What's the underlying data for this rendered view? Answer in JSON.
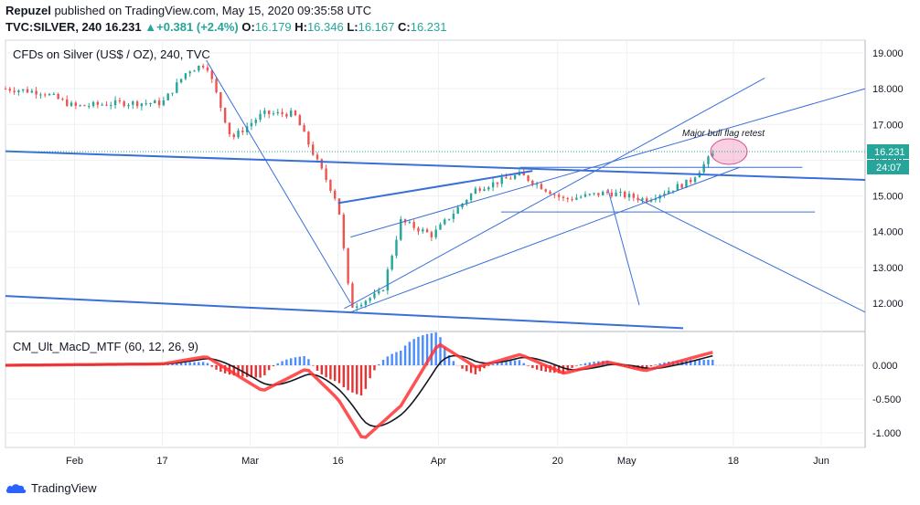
{
  "header": {
    "publisher": "Repuzel",
    "published_text": " published on TradingView.com, May 15, 2020 09:35:58 UTC",
    "symbol": "TVC:SILVER, 240",
    "last": "16.231",
    "change": "+0.381 (+2.4%)",
    "o_label": "O:",
    "o": "16.179",
    "h_label": "H:",
    "h": "16.346",
    "l_label": "L:",
    "l": "16.167",
    "c_label": "C:",
    "c": "16.231"
  },
  "price_pane": {
    "title": "CFDs on Silver (US$ / OZ), 240, TVC",
    "annotation": "Major bull flag retest",
    "price_badge": "16.231",
    "time_badge": "24:07",
    "y_ticks": [
      "19.000",
      "18.000",
      "17.000",
      "16.000",
      "15.000",
      "14.000",
      "13.000",
      "12.000"
    ]
  },
  "indicator_pane": {
    "title": "CM_Ult_MacD_MTF (60, 12, 26, 9)",
    "y_ticks": [
      "0.000",
      "-0.500",
      "-1.000"
    ]
  },
  "x_axis": {
    "ticks": [
      "Feb",
      "17",
      "Mar",
      "16",
      "Apr",
      "20",
      "May",
      "18",
      "Jun"
    ]
  },
  "footer": {
    "brand": "TradingView"
  },
  "colors": {
    "up": "#26a69a",
    "down": "#ef5350",
    "trendline": "#3a6fd8",
    "macd_green": "#66ff33",
    "macd_red": "#ff3333",
    "hist_red": "#e00000",
    "hist_blue": "#1e6fff"
  },
  "chart_data": {
    "type": "candlestick",
    "y_range": [
      11.5,
      19.2
    ],
    "price_path_points": [
      [
        "2020-01-23",
        18.0
      ],
      [
        "2020-01-29",
        17.9
      ],
      [
        "2020-02-03",
        17.5
      ],
      [
        "2020-02-10",
        17.6
      ],
      [
        "2020-02-17",
        17.6
      ],
      [
        "2020-02-21",
        18.5
      ],
      [
        "2020-02-24",
        18.7
      ],
      [
        "2020-02-28",
        16.6
      ],
      [
        "2020-03-04",
        17.3
      ],
      [
        "2020-03-09",
        17.3
      ],
      [
        "2020-03-12",
        16.2
      ],
      [
        "2020-03-16",
        14.8
      ],
      [
        "2020-03-18",
        11.9
      ],
      [
        "2020-03-23",
        12.3
      ],
      [
        "2020-03-26",
        14.3
      ],
      [
        "2020-03-31",
        13.9
      ],
      [
        "2020-04-07",
        15.2
      ],
      [
        "2020-04-14",
        15.6
      ],
      [
        "2020-04-21",
        14.9
      ],
      [
        "2020-04-28",
        15.1
      ],
      [
        "2020-05-04",
        14.9
      ],
      [
        "2020-05-11",
        15.4
      ],
      [
        "2020-05-15",
        16.23
      ]
    ],
    "macd_points": [
      [
        "2020-01-23",
        0.0
      ],
      [
        "2020-02-17",
        0.02
      ],
      [
        "2020-02-24",
        0.13
      ],
      [
        "2020-03-04",
        -0.38
      ],
      [
        "2020-03-11",
        -0.05
      ],
      [
        "2020-03-16",
        -0.5
      ],
      [
        "2020-03-20",
        -1.1
      ],
      [
        "2020-03-26",
        -0.6
      ],
      [
        "2020-04-01",
        0.32
      ],
      [
        "2020-04-07",
        -0.03
      ],
      [
        "2020-04-14",
        0.16
      ],
      [
        "2020-04-21",
        -0.12
      ],
      [
        "2020-04-28",
        0.05
      ],
      [
        "2020-05-04",
        -0.08
      ],
      [
        "2020-05-11",
        0.1
      ],
      [
        "2020-05-15",
        0.2
      ]
    ],
    "macd_y_range": [
      -1.2,
      0.4
    ]
  }
}
